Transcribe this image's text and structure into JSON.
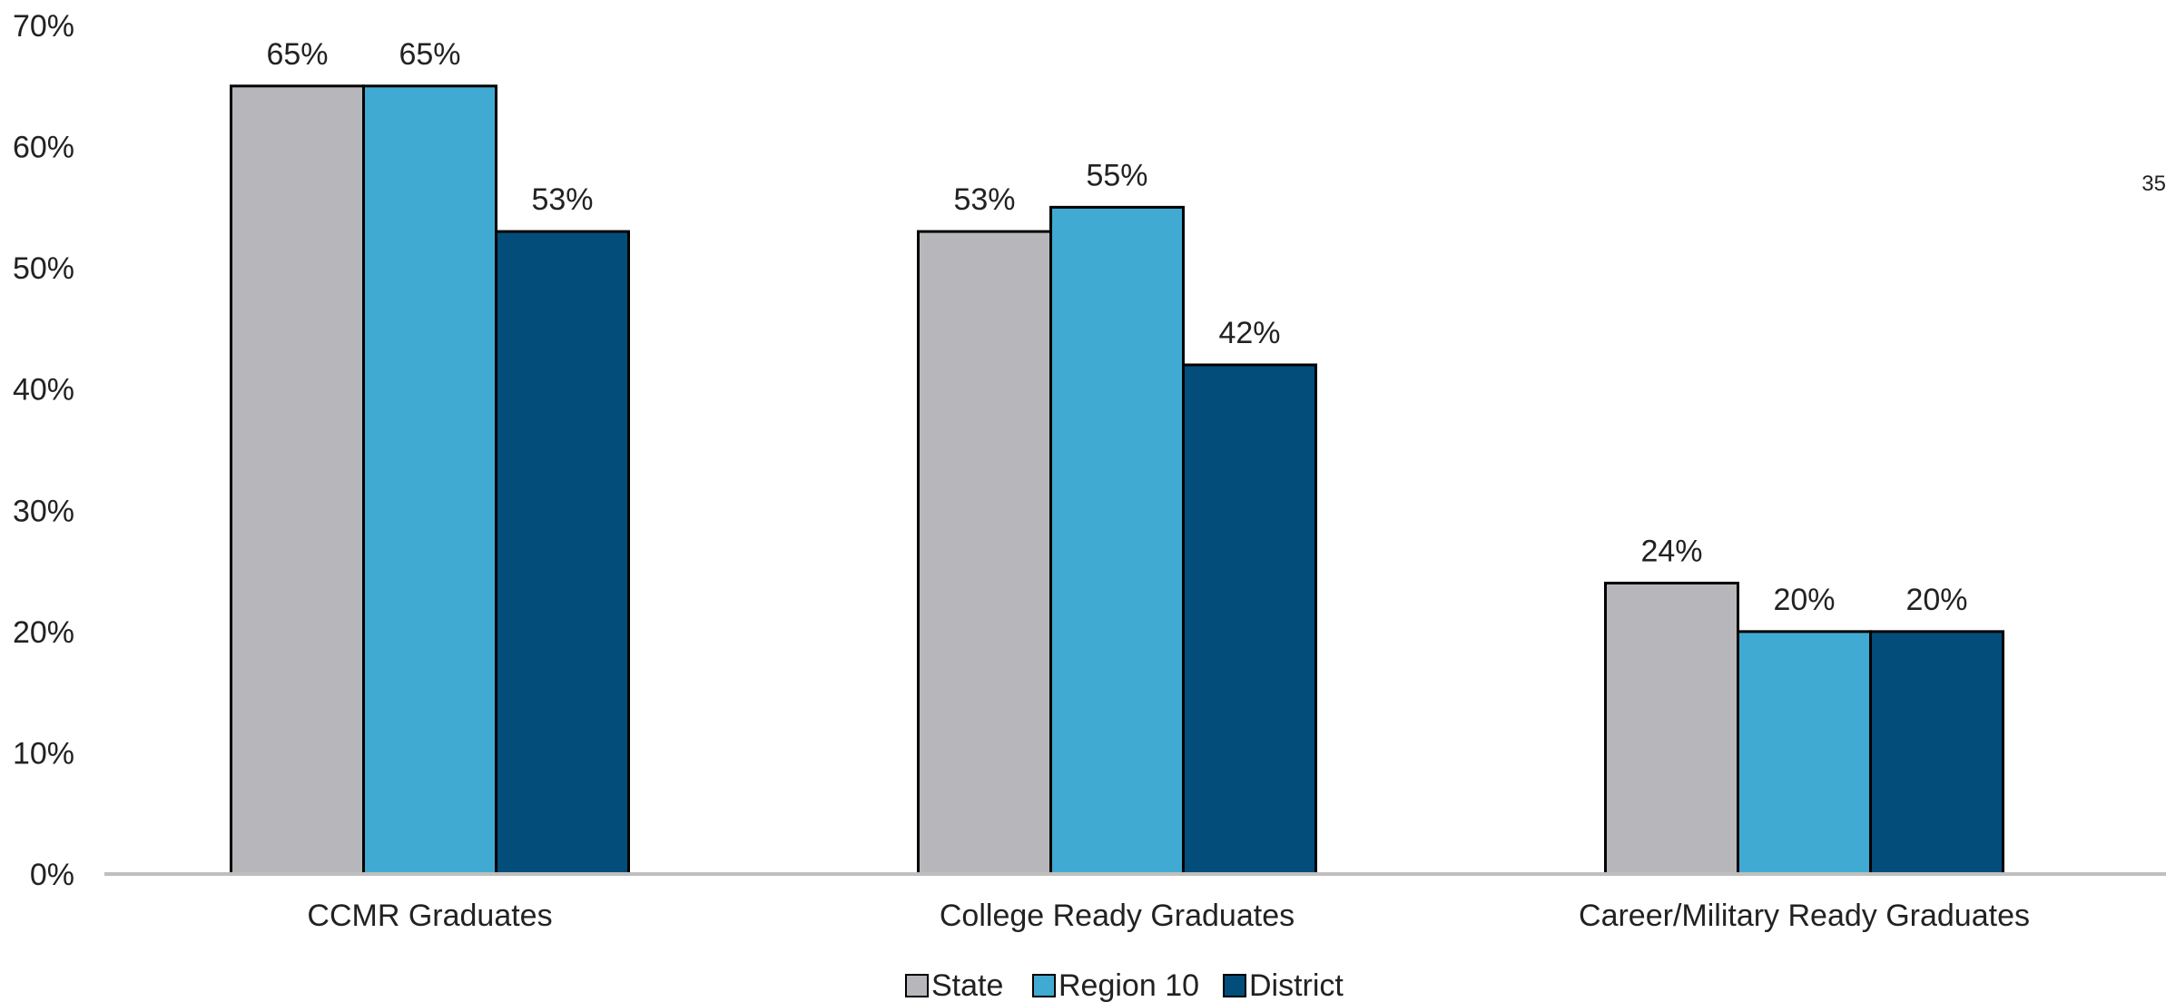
{
  "chart_data": {
    "type": "bar",
    "categories": [
      "CCMR Graduates",
      "College Ready Graduates",
      "Career/Military Ready Graduates"
    ],
    "series": [
      {
        "name": "State",
        "values": [
          65,
          53,
          24
        ],
        "labels": [
          "65%",
          "53%",
          "24%"
        ],
        "color": "#b7b7bb"
      },
      {
        "name": "Region 10",
        "values": [
          65,
          55,
          20
        ],
        "labels": [
          "65%",
          "55%",
          "20%"
        ],
        "color": "#41aad3"
      },
      {
        "name": "District",
        "values": [
          53,
          42,
          20
        ],
        "labels": [
          "53%",
          "42%",
          "20%"
        ],
        "color": "#024d7a"
      }
    ],
    "ylim": [
      0,
      70
    ],
    "yticks": [
      "0%",
      "10%",
      "20%",
      "30%",
      "40%",
      "50%",
      "60%",
      "70%"
    ],
    "grid": false,
    "legend_position": "bottom-center",
    "title": "",
    "xlabel": "",
    "ylabel": ""
  },
  "page_note": "35",
  "colors": {
    "axis": "#bfbfbf",
    "bar_outline": "#000000"
  }
}
